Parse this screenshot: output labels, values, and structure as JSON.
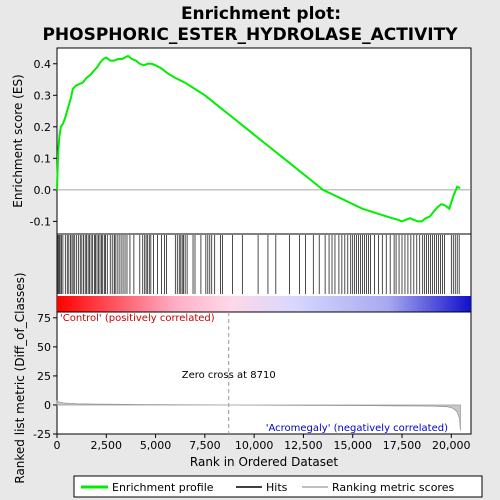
{
  "chart_data": {
    "type": "line",
    "title_line1": "Enrichment plot:",
    "title_line2": "PHOSPHORIC_ESTER_HYDROLASE_ACTIVITY",
    "top_panel": {
      "ylabel": "Enrichment score (ES)",
      "ylim": [
        -0.14,
        0.45
      ],
      "yticks": [
        -0.1,
        0.0,
        0.1,
        0.2,
        0.3,
        0.4
      ],
      "ytick_labels": [
        "-0.1",
        "0.0",
        "0.1",
        "0.2",
        "0.3",
        "0.4"
      ],
      "series": [
        {
          "name": "Enrichment profile",
          "color": "#00ee00",
          "x": [
            0,
            60,
            120,
            200,
            300,
            420,
            560,
            700,
            800,
            950,
            1100,
            1300,
            1500,
            1700,
            1900,
            2050,
            2200,
            2350,
            2500,
            2700,
            2900,
            3100,
            3300,
            3450,
            3600,
            3800,
            4000,
            4200,
            4400,
            4600,
            4800,
            5000,
            5300,
            5600,
            6000,
            6500,
            7000,
            7500,
            8000,
            8500,
            9000,
            9500,
            10000,
            10500,
            11000,
            11500,
            12000,
            12500,
            13000,
            13500,
            14000,
            14500,
            15000,
            15500,
            16000,
            16500,
            17000,
            17300,
            17500,
            17700,
            17900,
            18100,
            18300,
            18500,
            18700,
            18900,
            19100,
            19300,
            19500,
            19700,
            19900,
            20100,
            20300,
            20450
          ],
          "y": [
            0.0,
            0.12,
            0.17,
            0.2,
            0.21,
            0.23,
            0.26,
            0.29,
            0.32,
            0.33,
            0.335,
            0.34,
            0.355,
            0.365,
            0.38,
            0.39,
            0.405,
            0.415,
            0.42,
            0.41,
            0.41,
            0.415,
            0.415,
            0.42,
            0.425,
            0.415,
            0.41,
            0.4,
            0.395,
            0.4,
            0.4,
            0.395,
            0.385,
            0.37,
            0.355,
            0.34,
            0.32,
            0.3,
            0.275,
            0.25,
            0.225,
            0.2,
            0.175,
            0.15,
            0.125,
            0.1,
            0.075,
            0.05,
            0.025,
            0.0,
            -0.015,
            -0.03,
            -0.045,
            -0.06,
            -0.07,
            -0.08,
            -0.09,
            -0.095,
            -0.1,
            -0.095,
            -0.09,
            -0.095,
            -0.1,
            -0.1,
            -0.09,
            -0.085,
            -0.07,
            -0.055,
            -0.045,
            -0.05,
            -0.06,
            -0.02,
            0.01,
            0.005
          ]
        }
      ]
    },
    "hits_panel": {
      "positions": [
        20,
        60,
        110,
        160,
        230,
        300,
        420,
        520,
        600,
        680,
        760,
        820,
        900,
        1000,
        1100,
        1180,
        1260,
        1340,
        1430,
        1500,
        1580,
        1650,
        1730,
        1810,
        1900,
        1960,
        2030,
        2100,
        2180,
        2260,
        2320,
        2400,
        2460,
        2550,
        2700,
        2800,
        2900,
        2950,
        3050,
        3150,
        3250,
        3350,
        3450,
        3550,
        3700,
        3900,
        4200,
        4350,
        4450,
        4520,
        4600,
        4680,
        4760,
        4900,
        5100,
        5300,
        5450,
        5550,
        6000,
        6100,
        6200,
        6280,
        6350,
        6420,
        6500,
        6600,
        6900,
        7000,
        7300,
        7550,
        7650,
        7750,
        7850,
        8000,
        8300,
        8400,
        8900,
        9400,
        10200,
        10700,
        11100,
        11800,
        12300,
        12600,
        13000,
        13300,
        13600,
        13800,
        13950,
        14100,
        14300,
        14450,
        14600,
        14750,
        14900,
        15000,
        15100,
        15200,
        15300,
        15400,
        15500,
        15600,
        15700,
        15800,
        15900,
        16100,
        16300,
        16500,
        16700,
        16900,
        17100,
        17200,
        17350,
        17500,
        17650,
        17800,
        17950,
        18100,
        18250,
        18400,
        18550,
        18650,
        18750,
        18850,
        18950,
        19050,
        19150,
        19250,
        19350,
        19450,
        19550,
        19650,
        20000,
        20100,
        20200,
        20300,
        20400
      ],
      "colorbar_left_label": "'Control' (positively correlated)",
      "colorbar_right_label": "'Acromegaly' (negatively correlated)"
    },
    "metric_panel": {
      "ylabel": "Ranked list metric (Diff_of_Classes)",
      "ylim": [
        -25,
        80
      ],
      "yticks": [
        -25,
        0,
        25,
        50,
        75
      ],
      "ytick_labels": [
        "-25",
        "0",
        "25",
        "50",
        "75"
      ],
      "xlabel": "Rank in Ordered Dataset",
      "xlim": [
        0,
        21000
      ],
      "xticks": [
        0,
        2500,
        5000,
        7500,
        10000,
        12500,
        15000,
        17500,
        20000
      ],
      "xtick_labels": [
        "0",
        "2,500",
        "5,000",
        "7,500",
        "10,000",
        "12,500",
        "15,000",
        "17,500",
        "20,000"
      ],
      "zero_cross": 8710,
      "zero_cross_label": "Zero cross at 8710",
      "metric_x": [
        0,
        100,
        300,
        600,
        1000,
        2000,
        4000,
        8710,
        12000,
        16000,
        19000,
        19800,
        20100,
        20300,
        20420,
        20460
      ],
      "metric_y": [
        3.5,
        2.5,
        1.8,
        1.3,
        1.0,
        0.7,
        0.4,
        0.0,
        -0.3,
        -0.6,
        -1.0,
        -1.5,
        -3.0,
        -6.0,
        -12.0,
        -22.0
      ]
    },
    "legend": [
      {
        "label": "Enrichment profile",
        "color": "#00ee00"
      },
      {
        "label": "Hits",
        "color": "#000000"
      },
      {
        "label": "Ranking metric scores",
        "color": "#aaaaaa"
      }
    ]
  }
}
